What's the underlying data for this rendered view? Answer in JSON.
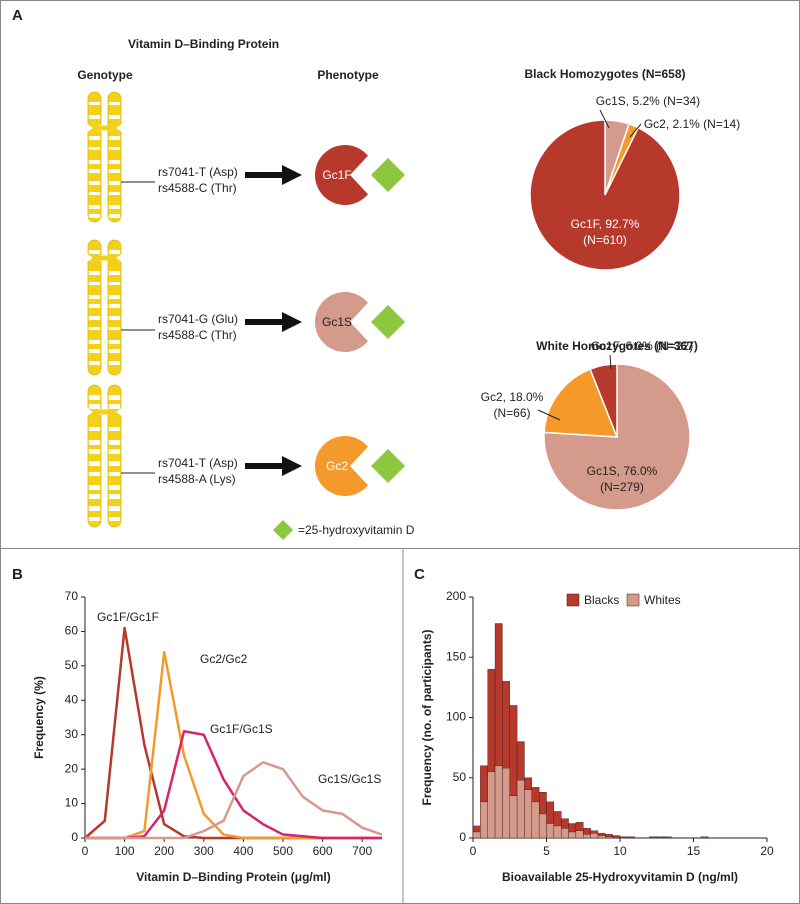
{
  "panel_a": {
    "label": "A",
    "title": "Vitamin D–Binding Protein",
    "genotype_header": "Genotype",
    "phenotype_header": "Phenotype",
    "rows": [
      {
        "snp1": "rs7041-T (Asp)",
        "snp2": "rs4588-C (Thr)",
        "phenotype": "Gc1F"
      },
      {
        "snp1": "rs7041-G (Glu)",
        "snp2": "rs4588-C (Thr)",
        "phenotype": "Gc1S"
      },
      {
        "snp1": "rs7041-T (Asp)",
        "snp2": "rs4588-A (Lys)",
        "phenotype": "Gc2"
      }
    ],
    "legend": "=25-hydroxyvitamin D"
  },
  "chart_data": [
    {
      "type": "pie",
      "title": "Black Homozygotes (N=658)",
      "categories": [
        "Gc1S",
        "Gc2",
        "Gc1F"
      ],
      "values": [
        5.2,
        2.1,
        92.7
      ],
      "value_labels": [
        [
          "Gc1S, 5.2% (N=34)"
        ],
        [
          "Gc2, 2.1% (N=14)"
        ],
        [
          "Gc1F, 92.7%",
          "(N=610)"
        ]
      ],
      "colors": [
        "#d49a8b",
        "#f39a2b",
        "#b6392c"
      ]
    },
    {
      "type": "pie",
      "title": "White Homozygotes (N=367)",
      "categories": [
        "Gc1S",
        "Gc2",
        "Gc1F"
      ],
      "values": [
        76.0,
        18.0,
        6.0
      ],
      "value_labels": [
        [
          "Gc1S, 76.0%",
          "(N=279)"
        ],
        [
          "Gc2, 18.0%",
          "(N=66)"
        ],
        [
          "Gc1F, 6.0% (N=22)"
        ]
      ],
      "colors": [
        "#d49a8b",
        "#f39a2b",
        "#b6392c"
      ]
    },
    {
      "type": "line",
      "label": "B",
      "xlabel": "Vitamin D–Binding Protein (μg/ml)",
      "ylabel": "Frequency (%)",
      "x": [
        0,
        50,
        100,
        150,
        200,
        250,
        300,
        350,
        400,
        450,
        500,
        550,
        600,
        650,
        700,
        750
      ],
      "series": [
        {
          "name": "Gc1F/Gc1F",
          "color": "#b6392c",
          "values": [
            0,
            5,
            61,
            27,
            4,
            0.5,
            0,
            0,
            0,
            0,
            0,
            0,
            0,
            0,
            0,
            0
          ]
        },
        {
          "name": "Gc2/Gc2",
          "color": "#f39a2b",
          "values": [
            0,
            0,
            0,
            2,
            54,
            24,
            7,
            1,
            0,
            0,
            0,
            0,
            0,
            0,
            0,
            0
          ]
        },
        {
          "name": "Gc1F/Gc1S",
          "color": "#d6246e",
          "values": [
            0,
            0,
            0,
            0.5,
            8,
            31,
            30,
            17,
            8,
            4,
            1,
            0.5,
            0,
            0,
            0,
            0
          ]
        },
        {
          "name": "Gc1S/Gc1S",
          "color": "#d49a8b",
          "values": [
            0,
            0,
            0,
            0,
            0,
            0,
            2,
            5,
            18,
            22,
            20,
            12,
            8,
            7,
            3,
            1
          ]
        }
      ],
      "xlim": [
        0,
        750
      ],
      "xticks": [
        0,
        100,
        200,
        300,
        400,
        500,
        600,
        700
      ],
      "ylim": [
        0,
        70
      ],
      "yticks": [
        0,
        10,
        20,
        30,
        40,
        50,
        60,
        70
      ]
    },
    {
      "type": "histogram",
      "label": "C",
      "xlabel": "Bioavailable 25-Hydroxyvitamin D (ng/ml)",
      "ylabel": "Frequency (no. of participants)",
      "bins": [
        0,
        0.5,
        1,
        1.5,
        2,
        2.5,
        3,
        3.5,
        4,
        4.5,
        5,
        5.5,
        6,
        6.5,
        7,
        7.5,
        8,
        8.5,
        9,
        9.5,
        10,
        10.5,
        11,
        11.5,
        12,
        12.5,
        13,
        13.5,
        14,
        14.5,
        15,
        15.5,
        16
      ],
      "series": [
        {
          "name": "Blacks",
          "color": "#b6392c",
          "values": [
            10,
            60,
            140,
            178,
            130,
            110,
            80,
            50,
            42,
            38,
            30,
            22,
            16,
            12,
            13,
            8,
            6,
            4,
            3,
            2,
            1,
            1,
            0,
            0,
            1,
            1,
            1,
            0,
            0,
            0,
            0,
            1
          ]
        },
        {
          "name": "Whites",
          "color": "#d49a8b",
          "values": [
            5,
            30,
            55,
            60,
            58,
            35,
            48,
            40,
            30,
            20,
            12,
            10,
            8,
            5,
            6,
            3,
            4,
            2,
            1,
            0,
            0,
            0,
            0,
            0,
            0,
            0,
            0,
            0,
            0,
            0,
            0,
            0
          ]
        }
      ],
      "xlim": [
        0,
        20
      ],
      "xticks": [
        0,
        5,
        10,
        15,
        20
      ],
      "ylim": [
        0,
        200
      ],
      "yticks": [
        0,
        50,
        100,
        150,
        200
      ]
    }
  ]
}
